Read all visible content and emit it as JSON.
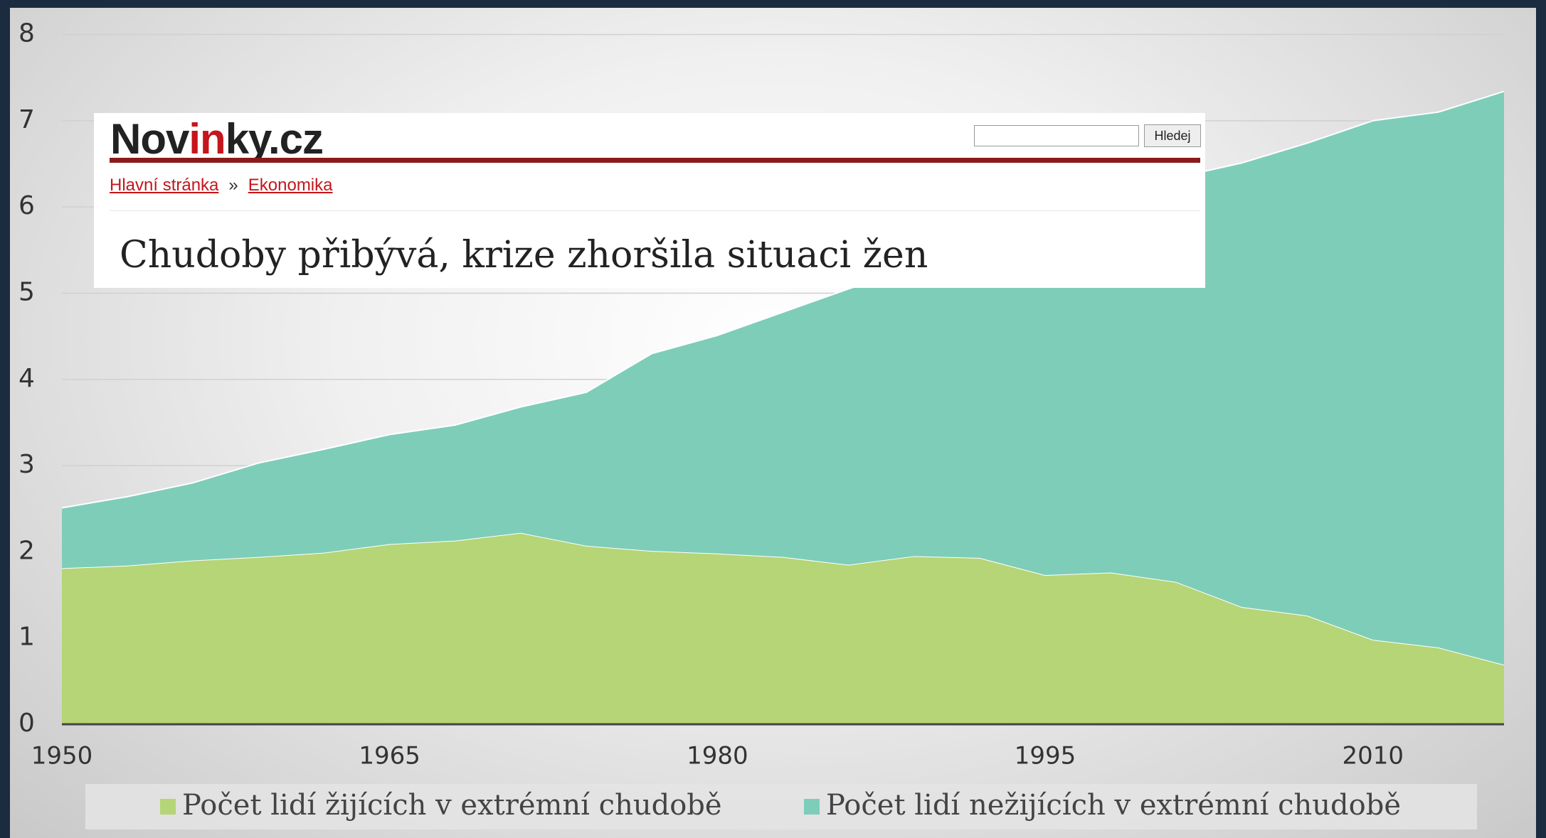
{
  "chart_data": {
    "type": "stacked_area",
    "x": [
      1950,
      1953,
      1956,
      1959,
      1962,
      1965,
      1968,
      1971,
      1974,
      1977,
      1980,
      1983,
      1986,
      1989,
      1992,
      1995,
      1998,
      2001,
      2004,
      2007,
      2010,
      2013,
      2016
    ],
    "series": [
      {
        "name": "Počet lidí žijících v extrémní chudobě",
        "color": "#b5d576",
        "values": [
          1.81,
          1.84,
          1.9,
          1.94,
          1.99,
          2.09,
          2.13,
          2.22,
          2.07,
          2.01,
          1.98,
          1.94,
          1.85,
          1.95,
          1.93,
          1.73,
          1.76,
          1.65,
          1.36,
          1.26,
          0.98,
          0.89,
          0.69
        ]
      },
      {
        "name": "Počet lidí nežijících v extrémní chudobě",
        "color": "#7ecdb9",
        "values": [
          0.7,
          0.8,
          0.9,
          1.09,
          1.2,
          1.27,
          1.34,
          1.46,
          1.78,
          2.29,
          2.53,
          2.84,
          3.2,
          3.35,
          3.57,
          4.02,
          4.24,
          4.69,
          5.15,
          5.48,
          6.02,
          6.21,
          6.65
        ]
      }
    ],
    "xlim": [
      1950,
      2016
    ],
    "xticks": [
      1950,
      1965,
      1980,
      1995,
      2010
    ],
    "ylim": [
      0,
      8
    ],
    "yticks": [
      0,
      1,
      2,
      3,
      4,
      5,
      6,
      7,
      8
    ],
    "grid": true,
    "legend": "bottom"
  },
  "overlay": {
    "logo": [
      "Nov",
      "in",
      "ky.cz"
    ],
    "search_button": "Hledej",
    "breadcrumb": [
      "Hlavní stránka",
      "»",
      "Ekonomika"
    ],
    "headline": "Chudoby přibývá, krize zhoršila situaci žen"
  }
}
